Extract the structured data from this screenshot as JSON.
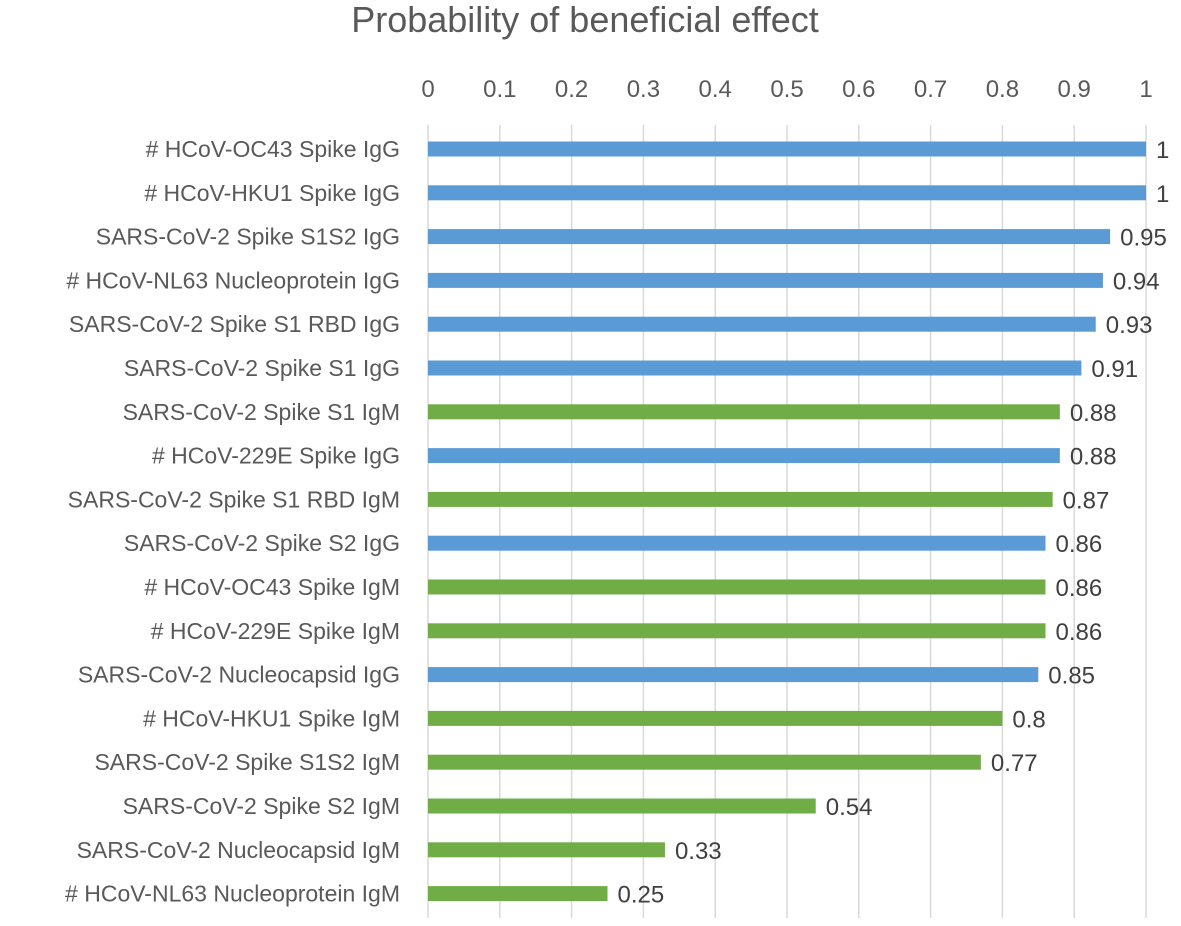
{
  "chart_data": {
    "type": "bar",
    "orientation": "horizontal",
    "title": "Probability of beneficial effect",
    "xlabel": "",
    "ylabel": "",
    "xlim": [
      0,
      1
    ],
    "x_ticks": [
      0,
      0.1,
      0.2,
      0.3,
      0.4,
      0.5,
      0.6,
      0.7,
      0.8,
      0.9,
      1
    ],
    "x_tick_labels": [
      "0",
      "0.1",
      "0.2",
      "0.3",
      "0.4",
      "0.5",
      "0.6",
      "0.7",
      "0.8",
      "0.9",
      "1"
    ],
    "x_axis_position": "top",
    "grid": true,
    "legend": null,
    "colors": {
      "IgG": "#5b9bd5",
      "IgM": "#70ad47"
    },
    "categories": [
      "# HCoV-OC43 Spike IgG",
      "# HCoV-HKU1 Spike IgG",
      "SARS-CoV-2 Spike S1S2 IgG",
      "# HCoV-NL63 Nucleoprotein IgG",
      "SARS-CoV-2 Spike S1 RBD IgG",
      "SARS-CoV-2 Spike S1 IgG",
      "SARS-CoV-2 Spike S1 IgM",
      "# HCoV-229E Spike IgG",
      "SARS-CoV-2 Spike S1 RBD IgM",
      "SARS-CoV-2 Spike S2 IgG",
      "# HCoV-OC43 Spike IgM",
      "# HCoV-229E Spike IgM",
      "SARS-CoV-2 Nucleocapsid IgG",
      "# HCoV-HKU1 Spike IgM",
      "SARS-CoV-2 Spike S1S2 IgM",
      "SARS-CoV-2 Spike S2 IgM",
      "SARS-CoV-2 Nucleocapsid IgM",
      "# HCoV-NL63 Nucleoprotein IgM"
    ],
    "values": [
      1,
      1,
      0.95,
      0.94,
      0.93,
      0.91,
      0.88,
      0.88,
      0.87,
      0.86,
      0.86,
      0.86,
      0.85,
      0.8,
      0.77,
      0.54,
      0.33,
      0.25
    ],
    "value_labels": [
      "1",
      "1",
      "0.95",
      "0.94",
      "0.93",
      "0.91",
      "0.88",
      "0.88",
      "0.87",
      "0.86",
      "0.86",
      "0.86",
      "0.85",
      "0.8",
      "0.77",
      "0.54",
      "0.33",
      "0.25"
    ],
    "isotypes": [
      "IgG",
      "IgG",
      "IgG",
      "IgG",
      "IgG",
      "IgG",
      "IgM",
      "IgG",
      "IgM",
      "IgG",
      "IgM",
      "IgM",
      "IgG",
      "IgM",
      "IgM",
      "IgM",
      "IgM",
      "IgM"
    ]
  }
}
